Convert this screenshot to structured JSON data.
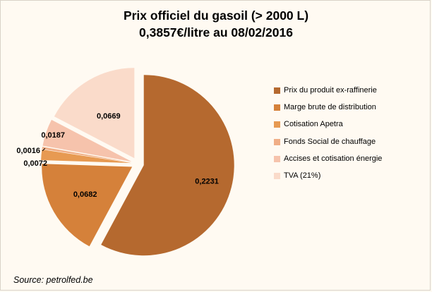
{
  "header": {
    "title_line1": "Prix officiel du gasoil (> 2000 L)",
    "title_line2": "0,3857€/litre au 08/02/2016"
  },
  "source": "Source: petrolfed.be",
  "chart_data": {
    "type": "pie",
    "title": "Prix officiel du gasoil (> 2000 L)",
    "subtitle": "0,3857€/litre au 08/02/2016",
    "legend_position": "right",
    "exploded": true,
    "categories": [
      "Prix du produit ex-raffinerie",
      "Marge brute de distribution",
      "Cotisation Apetra",
      "Fonds Social de chauffage",
      "Accises et cotisation  énergie",
      "TVA (21%)"
    ],
    "values": [
      0.2231,
      0.0682,
      0.0072,
      0.0016,
      0.0187,
      0.0669
    ],
    "data_labels": [
      "0,2231",
      "0,0682",
      "0,0072",
      "0,0016",
      "0,0187",
      "0,0669"
    ],
    "colors": [
      "#b5692f",
      "#d5813a",
      "#e79a52",
      "#f0ae86",
      "#f6c3ac",
      "#fadbca"
    ]
  }
}
